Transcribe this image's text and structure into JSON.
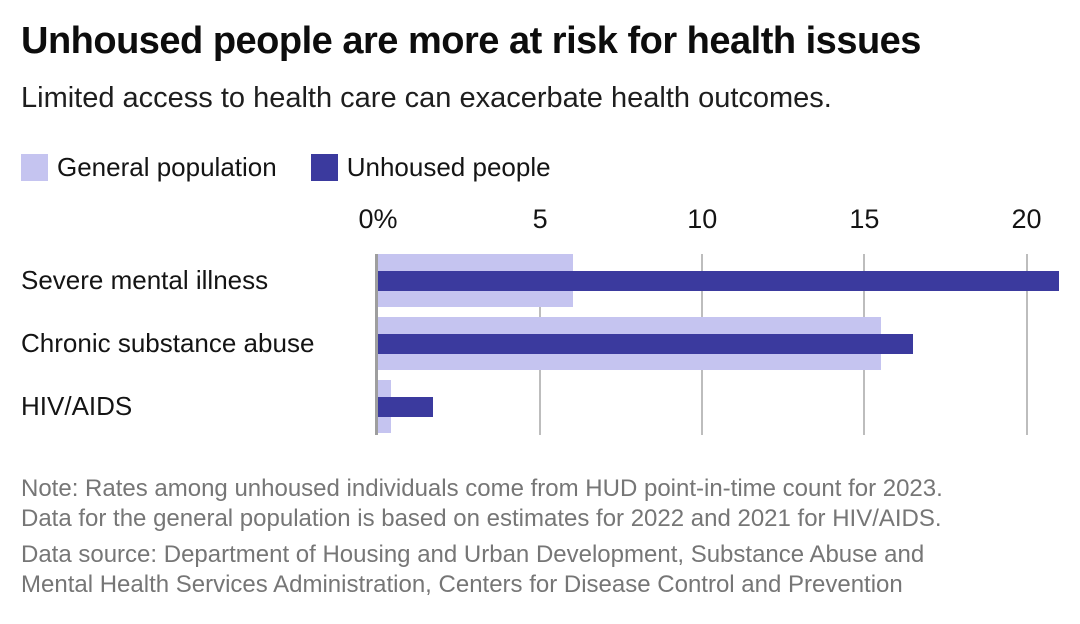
{
  "header": {
    "title": "Unhoused people are more at risk for health issues",
    "subtitle": "Limited access to health care can exacerbate health outcomes."
  },
  "legend": [
    {
      "label": "General population",
      "color": "#c5c4f0"
    },
    {
      "label": "Unhoused people",
      "color": "#3b3a9e"
    }
  ],
  "chart_data": {
    "type": "bar",
    "orientation": "horizontal",
    "title": "Unhoused people are more at risk for health issues",
    "subtitle": "Limited access to health care can exacerbate health outcomes.",
    "unit": "percent",
    "categories": [
      "Severe mental illness",
      "Chronic substance abuse",
      "HIV/AIDS"
    ],
    "series": [
      {
        "name": "General population",
        "color": "#c5c4f0",
        "values": [
          6,
          15.5,
          0.4
        ]
      },
      {
        "name": "Unhoused people",
        "color": "#3b3a9e",
        "values": [
          21,
          16.5,
          1.7
        ]
      }
    ],
    "x_ticks": [
      {
        "value": 0,
        "label": "0%"
      },
      {
        "value": 5,
        "label": "5"
      },
      {
        "value": 10,
        "label": "10"
      },
      {
        "value": 15,
        "label": "15"
      },
      {
        "value": 20,
        "label": "20"
      }
    ],
    "xlim": [
      0,
      21
    ],
    "grid": true,
    "legend_position": "top-left"
  },
  "notes": {
    "note_line1": "Note: Rates among unhoused individuals come from HUD point-in-time count for 2023.",
    "note_line2": "Data for the general population is based on estimates for 2022 and 2021 for HIV/AIDS.",
    "source_line1": "Data source: Department of Housing and Urban Development, Substance Abuse and",
    "source_line2": "Mental Health Services Administration, Centers for Disease Control and Prevention"
  },
  "colors": {
    "general_population_bar": "#c5c4f0",
    "unhoused_people_bar": "#3b3a9e",
    "gridline": "#bdbdbd",
    "zero_axis": "#9e9e9e",
    "title_text": "#0d0d0d",
    "note_text": "#767676",
    "background": "#ffffff"
  }
}
